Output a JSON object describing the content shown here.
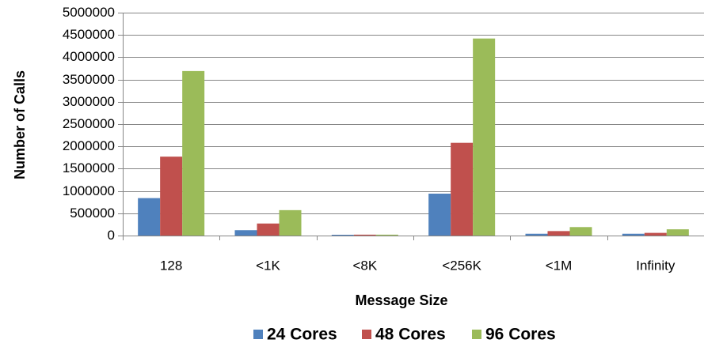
{
  "chart_data": {
    "type": "bar",
    "title": "",
    "xlabel": "Message Size",
    "ylabel": "Number of Calls",
    "ylim": [
      0,
      5000000
    ],
    "yticks": [
      0,
      500000,
      1000000,
      1500000,
      2000000,
      2500000,
      3000000,
      3500000,
      4000000,
      4500000,
      5000000
    ],
    "ytick_labels": [
      "0",
      "500000",
      "1000000",
      "1500000",
      "2000000",
      "2500000",
      "3000000",
      "3500000",
      "4000000",
      "4500000",
      "5000000"
    ],
    "categories": [
      "128",
      "<1K",
      "<8K",
      "<256K",
      "<1M",
      "Infinity"
    ],
    "series": [
      {
        "name": "24 Cores",
        "color": "#4f81bd",
        "values": [
          840000,
          120000,
          15000,
          940000,
          40000,
          40000
        ]
      },
      {
        "name": "48 Cores",
        "color": "#c0504d",
        "values": [
          1770000,
          270000,
          20000,
          2080000,
          100000,
          60000
        ]
      },
      {
        "name": "96 Cores",
        "color": "#9bbb59",
        "values": [
          3690000,
          570000,
          20000,
          4420000,
          190000,
          140000
        ]
      }
    ],
    "grid": true,
    "legend_position": "bottom"
  }
}
